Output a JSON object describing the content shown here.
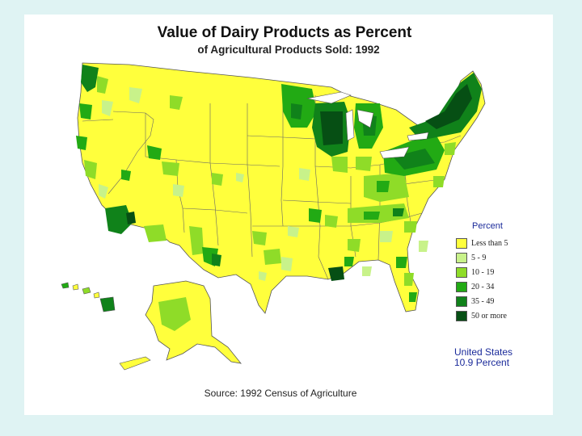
{
  "title": "Value of Dairy Products as Percent",
  "subtitle": "of Agricultural Products Sold:  1992",
  "legend": {
    "title": "Percent",
    "items": [
      {
        "label": "Less than 5",
        "color": "#ffff3c"
      },
      {
        "label": "5  -  9",
        "color": "#c8f28a"
      },
      {
        "label": "10  -  19",
        "color": "#8fdc28"
      },
      {
        "label": "20  -  34",
        "color": "#22aa14"
      },
      {
        "label": "35  -  49",
        "color": "#10821a"
      },
      {
        "label": "50 or more",
        "color": "#064f14"
      }
    ]
  },
  "us_total": {
    "line1": "United States",
    "line2": "10.9 Percent"
  },
  "source": "Source:  1992 Census of Agriculture",
  "colors": {
    "background": "#dff3f3",
    "panel": "#ffffff",
    "land": "#ffff3c",
    "border": "#555555"
  }
}
